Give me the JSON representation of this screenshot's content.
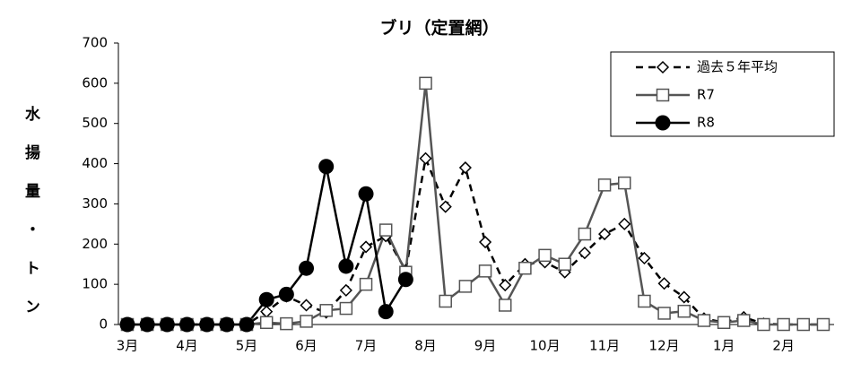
{
  "chart_data": {
    "type": "line",
    "title": "ブリ（定置網）",
    "y_label": "水揚量・トン",
    "categories": [
      "3月",
      null,
      null,
      "4月",
      null,
      null,
      "5月",
      null,
      null,
      "6月",
      null,
      null,
      "7月",
      null,
      null,
      "8月",
      null,
      null,
      "9月",
      null,
      null,
      "10月",
      null,
      null,
      "11月",
      null,
      null,
      "12月",
      null,
      null,
      "1月",
      null,
      null,
      "2月",
      null,
      null
    ],
    "series": [
      {
        "name": "過去５年平均",
        "color": "#000000",
        "dashed": true,
        "marker": "diamond",
        "values": [
          0,
          0,
          0,
          0,
          0,
          0,
          0,
          32,
          70,
          48,
          30,
          85,
          193,
          220,
          135,
          413,
          293,
          390,
          205,
          98,
          150,
          155,
          130,
          178,
          225,
          250,
          165,
          102,
          68,
          15,
          5,
          18,
          2,
          0,
          0,
          0
        ]
      },
      {
        "name": "R7",
        "color": "#555555",
        "dashed": false,
        "marker": "square",
        "values": [
          0,
          0,
          0,
          0,
          0,
          0,
          0,
          5,
          2,
          8,
          35,
          40,
          100,
          235,
          130,
          600,
          58,
          95,
          133,
          48,
          140,
          172,
          150,
          225,
          347,
          352,
          58,
          28,
          33,
          10,
          5,
          10,
          0,
          0,
          0,
          0
        ]
      },
      {
        "name": "R8",
        "color": "#000000",
        "dashed": false,
        "marker": "circle",
        "values": [
          0,
          0,
          0,
          0,
          0,
          0,
          0,
          62,
          75,
          140,
          393,
          145,
          325,
          32,
          112,
          null,
          null,
          null,
          null,
          null,
          null,
          null,
          null,
          null,
          null,
          null,
          null,
          null,
          null,
          null,
          null,
          null,
          null,
          null,
          null,
          null
        ]
      }
    ],
    "ylim": [
      0,
      700
    ],
    "yticks": [
      0,
      100,
      200,
      300,
      400,
      500,
      600,
      700
    ],
    "grid": false,
    "legend": "upper right"
  }
}
